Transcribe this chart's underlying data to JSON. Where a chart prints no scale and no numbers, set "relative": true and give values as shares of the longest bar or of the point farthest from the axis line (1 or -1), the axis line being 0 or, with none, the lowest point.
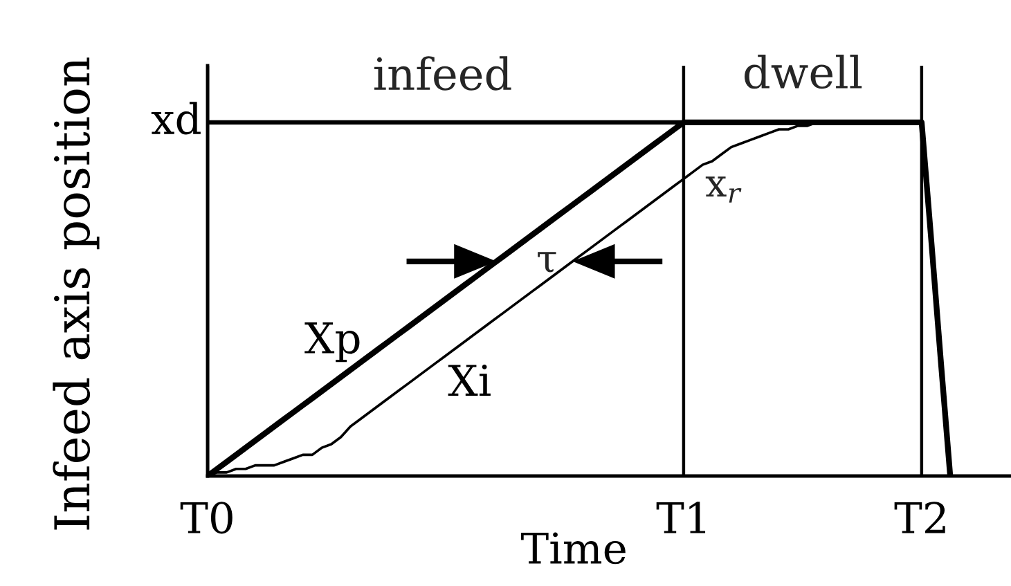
{
  "chart_data": {
    "type": "line",
    "xlabel": "Time",
    "ylabel": "Infeed axis position",
    "relative": true,
    "grid": "x",
    "categories": [
      "T0",
      null,
      null,
      null,
      null,
      null,
      null,
      null,
      null,
      null,
      null,
      null,
      null,
      null,
      null,
      null,
      null,
      null,
      null,
      null,
      null,
      null,
      null,
      null,
      null,
      null,
      null,
      null,
      null,
      null,
      null,
      null,
      null,
      null,
      null,
      null,
      null,
      null,
      null,
      null,
      null,
      null,
      null,
      null,
      null,
      null,
      null,
      null,
      null,
      null,
      "T1",
      null,
      null,
      null,
      null,
      null,
      null,
      null,
      null,
      null,
      null,
      null,
      null,
      null,
      null,
      null,
      null,
      null,
      null,
      null,
      null,
      null,
      null,
      null,
      null,
      "T2",
      null,
      null,
      null
    ],
    "series": [
      {
        "name": "Xp",
        "color": "#000000",
        "values": [
          0,
          0.02,
          0.04,
          0.06,
          0.08,
          0.1,
          0.12,
          0.14,
          0.16,
          0.18,
          0.2,
          0.22,
          0.24,
          0.26,
          0.28,
          0.3,
          0.32,
          0.34,
          0.36,
          0.38,
          0.4,
          0.42,
          0.44,
          0.46,
          0.48,
          0.5,
          0.52,
          0.54,
          0.56,
          0.58,
          0.6,
          0.62,
          0.64,
          0.66,
          0.68,
          0.7,
          0.72,
          0.74,
          0.76,
          0.78,
          0.8,
          0.82,
          0.84,
          0.86,
          0.88,
          0.9,
          0.92,
          0.94,
          0.96,
          0.98,
          1,
          1,
          1,
          1,
          1,
          1,
          1,
          1,
          1,
          1,
          1,
          1,
          1,
          1,
          1,
          1,
          1,
          1,
          1,
          1,
          1,
          1,
          1,
          1,
          1,
          1,
          0.67,
          0.33,
          0
        ]
      },
      {
        "name": "Xi",
        "color": "#000000",
        "values": [
          0,
          0.01,
          0.01,
          0.02,
          0.02,
          0.03,
          0.03,
          0.03,
          0.04,
          0.05,
          0.06,
          0.06,
          0.08,
          0.09,
          0.11,
          0.14,
          0.16,
          0.18,
          0.2,
          0.22,
          0.24,
          0.26,
          0.28,
          0.3,
          0.32,
          0.34,
          0.36,
          0.38,
          0.4,
          0.42,
          0.44,
          0.46,
          0.48,
          0.5,
          0.52,
          0.54,
          0.56,
          0.58,
          0.6,
          0.62,
          0.64,
          0.66,
          0.68,
          0.7,
          0.72,
          0.74,
          0.76,
          0.78,
          0.8,
          0.82,
          0.84,
          0.86,
          0.88,
          0.89,
          0.91,
          0.93,
          0.94,
          0.95,
          0.96,
          0.97,
          0.98,
          0.98,
          0.99,
          0.99,
          1,
          1,
          1,
          1,
          1,
          1,
          1,
          1,
          1,
          1,
          1,
          1,
          0.67,
          0.33,
          0
        ]
      }
    ],
    "ref_lines": [
      {
        "axis": "y",
        "value": 1,
        "label": "xd"
      }
    ],
    "annotations": [
      "infeed",
      "dwell",
      "τ",
      "x$_{r}$"
    ]
  }
}
